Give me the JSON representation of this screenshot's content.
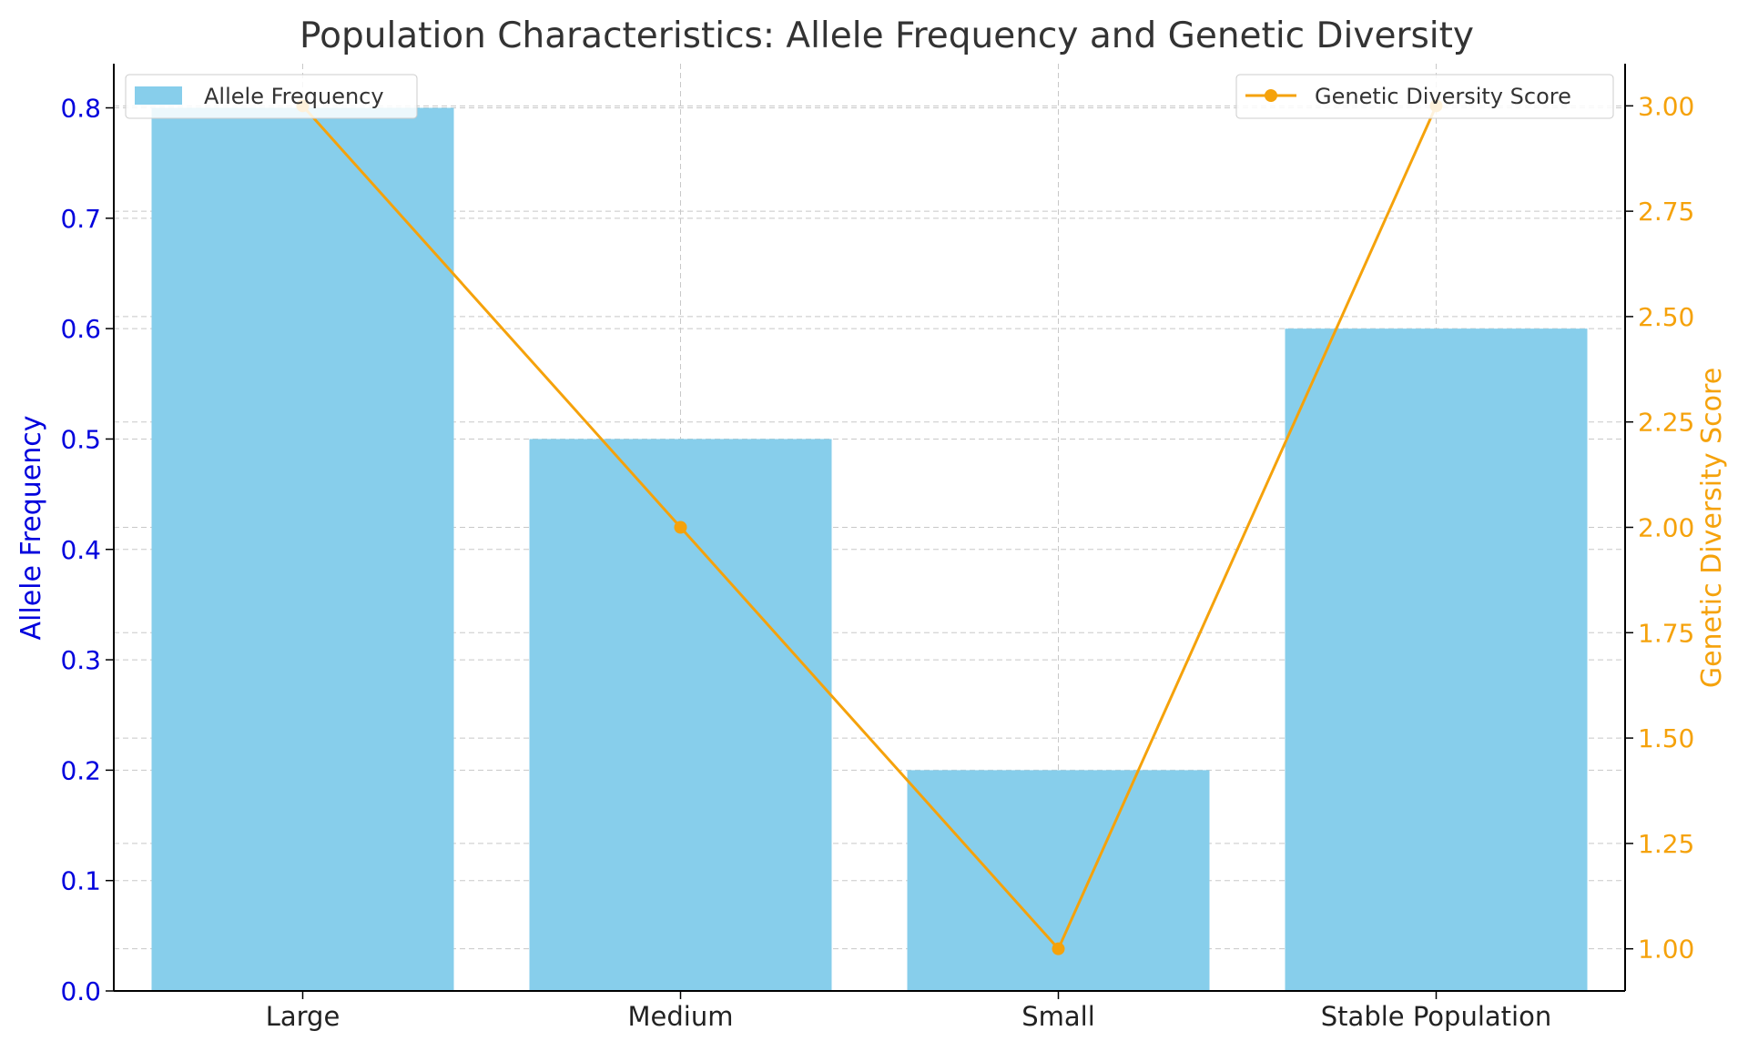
{
  "chart_data": {
    "type": "bar",
    "title": "Population Characteristics: Allele Frequency and Genetic Diversity",
    "categories": [
      "Large",
      "Medium",
      "Small",
      "Stable Population"
    ],
    "series": [
      {
        "name": "Allele Frequency",
        "type": "bar",
        "axis": "left",
        "values": [
          0.8,
          0.5,
          0.2,
          0.6
        ]
      },
      {
        "name": "Genetic Diversity Score",
        "type": "line",
        "axis": "right",
        "values": [
          3.0,
          2.0,
          1.0,
          3.0
        ]
      }
    ],
    "ylabel": "Allele Frequency",
    "ylabel_right": "Genetic Diversity Score",
    "ylim": [
      0,
      0.84
    ],
    "ylim_right": [
      0.9,
      3.1
    ],
    "yticks": [
      "0.0",
      "0.1",
      "0.2",
      "0.3",
      "0.4",
      "0.5",
      "0.6",
      "0.7",
      "0.8"
    ],
    "yticks_right": [
      "1.00",
      "1.25",
      "1.50",
      "1.75",
      "2.00",
      "2.25",
      "2.50",
      "2.75",
      "3.00"
    ],
    "grid": true,
    "legend_left": "top-left",
    "legend_right": "top-right",
    "colors": {
      "bar": "#87ceeb",
      "line": "#f5a20b",
      "left_axis": "#0000dd",
      "right_axis": "#f5a20b"
    }
  }
}
